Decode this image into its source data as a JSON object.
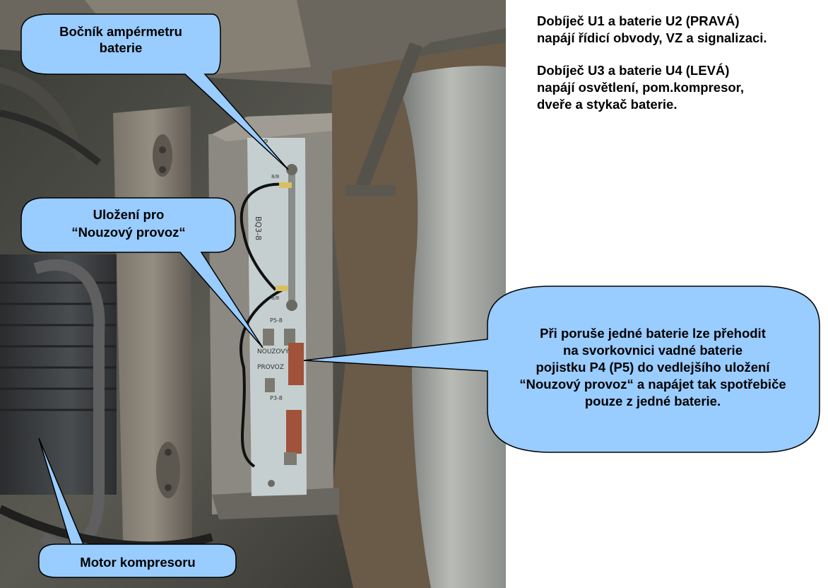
{
  "notes": [
    "Dobíječ U1 a baterie U2 (PRAVÁ)\nnapájí řídicí obvody, VZ a signalizaci.",
    "Dobíječ U3 a baterie U4 (LEVÁ)\nnapájí osvětlení, pom.kompresor,\ndveře a stykač baterie."
  ],
  "callouts": {
    "shunt": "Bočník ampérmetru\nbaterie",
    "emergency_slot": "Uložení pro\n“Nouzový provoz“",
    "instructions": "Při poruše jedné baterie lze přehodit\nna svorkovnici vadné baterie\npojistku P4 (P5) do vedlejšího uložení\n“Nouzový provoz“ a napájet tak spotřebiče\npouze z jedné baterie.",
    "motor": "Motor kompresoru"
  },
  "panel_labels": {
    "code": "BQ3-8",
    "nouzovy": "NOUZOVÝ",
    "provoz": "PROVOZ",
    "p5": "P5-8",
    "p3": "P3-8",
    "top": "8/9",
    "mid": "8/8",
    "mid2": "8/8"
  },
  "colors": {
    "callout_fill": "#99ccff",
    "callout_stroke": "#000000"
  }
}
